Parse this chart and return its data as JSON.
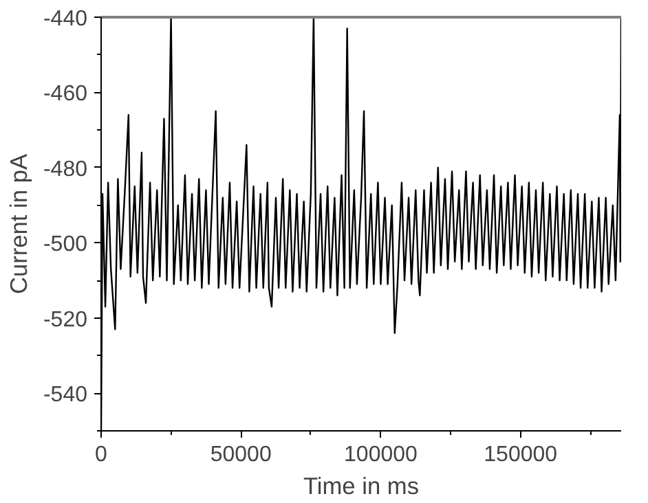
{
  "chart_data": {
    "type": "line",
    "xlabel": "Time in ms",
    "ylabel": "Current in pA",
    "xlim": [
      0,
      186000
    ],
    "ylim": [
      -550,
      -440
    ],
    "xticks": [
      0,
      50000,
      100000,
      150000
    ],
    "yticks": [
      -540,
      -520,
      -500,
      -480,
      -460,
      -440
    ],
    "grid": false,
    "line_style": "solid",
    "series": [
      {
        "color": "#000000",
        "x": [
          0,
          500,
          1500,
          2500,
          3500,
          5000,
          6000,
          7000,
          8500,
          9800,
          10500,
          12000,
          13000,
          14500,
          15000,
          16000,
          17500,
          18500,
          20000,
          21000,
          22500,
          23500,
          25000,
          26000,
          27500,
          28500,
          30000,
          31000,
          32500,
          33500,
          35000,
          36000,
          37500,
          38500,
          41000,
          42000,
          43500,
          44500,
          46000,
          47000,
          48500,
          49500,
          52000,
          53000,
          54500,
          55500,
          57000,
          58000,
          59500,
          60000,
          61000,
          62500,
          63500,
          65000,
          66000,
          67500,
          68500,
          70000,
          71000,
          72500,
          73500,
          75000,
          76000,
          77000,
          78500,
          79500,
          81000,
          82000,
          83500,
          84500,
          86000,
          87000,
          88000,
          89000,
          90500,
          91500,
          93000,
          94000,
          95000,
          96500,
          97500,
          99000,
          100000,
          101500,
          102500,
          104000,
          105000,
          106000,
          107500,
          108500,
          110000,
          111000,
          112500,
          113500,
          114000,
          115500,
          116500,
          118000,
          119000,
          120500,
          121500,
          123000,
          124000,
          125500,
          126500,
          128000,
          129000,
          130500,
          131500,
          133000,
          134000,
          135500,
          136500,
          138000,
          139000,
          140500,
          141500,
          143000,
          144000,
          145500,
          146500,
          148000,
          149000,
          150500,
          151500,
          153000,
          154000,
          155500,
          156500,
          158000,
          159000,
          160500,
          161500,
          163000,
          164000,
          165500,
          166500,
          168000,
          169000,
          170500,
          171500,
          173000,
          174000,
          175500,
          176500,
          178000,
          179000,
          180500,
          181500,
          183000,
          184000,
          185500,
          185700,
          186000,
          186000
        ],
        "values": [
          -550,
          -487,
          -517,
          -484,
          -507,
          -523,
          -483,
          -507,
          -486,
          -466,
          -509,
          -485,
          -508,
          -476,
          -509,
          -516,
          -484,
          -510,
          -486,
          -509,
          -467,
          -510,
          -440,
          -511,
          -490,
          -510,
          -482,
          -511,
          -487,
          -510,
          -483,
          -512,
          -486,
          -511,
          -465,
          -512,
          -488,
          -511,
          -484,
          -512,
          -489,
          -512,
          -474,
          -513,
          -485,
          -512,
          -487,
          -512,
          -484,
          -512,
          -517,
          -488,
          -512,
          -483,
          -512,
          -486,
          -513,
          -487,
          -512,
          -489,
          -513,
          -487,
          -440,
          -512,
          -487,
          -513,
          -485,
          -512,
          -488,
          -514,
          -482,
          -512,
          -443,
          -512,
          -486,
          -511,
          -488,
          -465,
          -512,
          -487,
          -511,
          -484,
          -511,
          -488,
          -511,
          -490,
          -524,
          -511,
          -484,
          -510,
          -488,
          -511,
          -486,
          -510,
          -514,
          -486,
          -508,
          -484,
          -508,
          -480,
          -506,
          -483,
          -507,
          -481,
          -505,
          -486,
          -507,
          -481,
          -505,
          -484,
          -507,
          -482,
          -506,
          -486,
          -507,
          -482,
          -508,
          -485,
          -506,
          -484,
          -507,
          -482,
          -506,
          -485,
          -508,
          -484,
          -509,
          -486,
          -508,
          -484,
          -510,
          -487,
          -509,
          -485,
          -510,
          -487,
          -510,
          -486,
          -511,
          -487,
          -512,
          -487,
          -512,
          -489,
          -512,
          -488,
          -513,
          -488,
          -511,
          -490,
          -510,
          -466,
          -505,
          -440,
          -458
        ]
      }
    ]
  }
}
